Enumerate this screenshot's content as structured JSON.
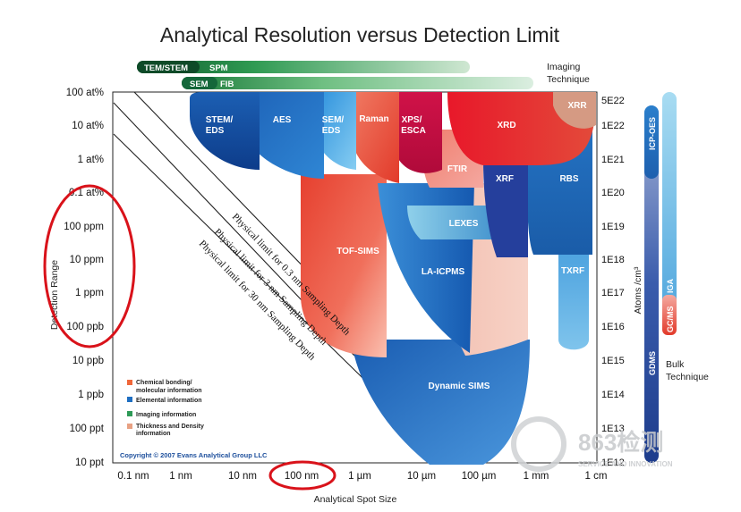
{
  "title": "Analytical Resolution versus Detection Limit",
  "y_axis": {
    "label": "Detection Range",
    "ticks": [
      "100 at%",
      "10 at%",
      "1 at%",
      "0.1 at%",
      "100 ppm",
      "10 ppm",
      "1 ppm",
      "100 ppb",
      "10 ppb",
      "1 ppb",
      "100 ppt",
      "10 ppt"
    ]
  },
  "right_axis": {
    "label": "Atoms /cm³",
    "ticks": [
      "5E22",
      "1E22",
      "1E21",
      "1E20",
      "1E19",
      "1E18",
      "1E17",
      "1E16",
      "1E15",
      "1E14",
      "1E13",
      "1E12"
    ]
  },
  "x_axis": {
    "label": "Analytical Spot Size",
    "ticks": [
      "0.1 nm",
      "1 nm",
      "10 nm",
      "100 nm",
      "1 µm",
      "10 µm",
      "100 µm",
      "1 mm",
      "1 cm"
    ]
  },
  "imaging": {
    "label_line1": "Imaging",
    "label_line2": "Technique",
    "bar1": [
      "TEM/STEM",
      "SPM"
    ],
    "bar2": [
      "SEM",
      "FIB"
    ]
  },
  "bulk": {
    "label_line1": "Bulk",
    "label_line2": "Technique",
    "bars": [
      "ICP-OES",
      "GDMS",
      "IGA",
      "GC/MS"
    ]
  },
  "techniques": {
    "stem_eds": [
      "STEM/",
      "EDS"
    ],
    "aes": "AES",
    "sem_eds": [
      "SEM/",
      "EDS"
    ],
    "raman": "Raman",
    "xps_esca": [
      "XPS/",
      "ESCA"
    ],
    "xrd": "XRD",
    "xrr": "XRR",
    "ftir": "FTIR",
    "xrf": "XRF",
    "rbs": "RBS",
    "lexes": "LEXES",
    "tof_sims": "TOF-SIMS",
    "la_icpms": "LA-ICPMS",
    "txrf": "TXRF",
    "dynamic_sims": "Dynamic SIMS"
  },
  "limits": [
    "Physical limit for 0.3 nm Sampling Depth",
    "Physical limit for 3 nm Sampling Depth",
    "Physical limit for 30 nm Sampling Depth"
  ],
  "legend": [
    {
      "line1": "Chemical bonding/",
      "line2": "molecular information",
      "color": "#f0673a"
    },
    {
      "line1": "Elemental information",
      "line2": "",
      "color": "#1f6fc2"
    },
    {
      "line1": "Imaging information",
      "line2": "",
      "color": "#2e9a57"
    },
    {
      "line1": "Thickness and Density",
      "line2": "information",
      "color": "#e8a183"
    }
  ],
  "copyright": "Copyright © 2007 Evans Analytical Group LLC",
  "watermark": {
    "main": "863检测",
    "sub": "SERVICE AND INNOVATION"
  },
  "colors": {
    "elemental": "#1f6fc2",
    "chemical": "#e8402f",
    "imaging": "#2e9a57",
    "highlight_circle": "#d9121a"
  }
}
